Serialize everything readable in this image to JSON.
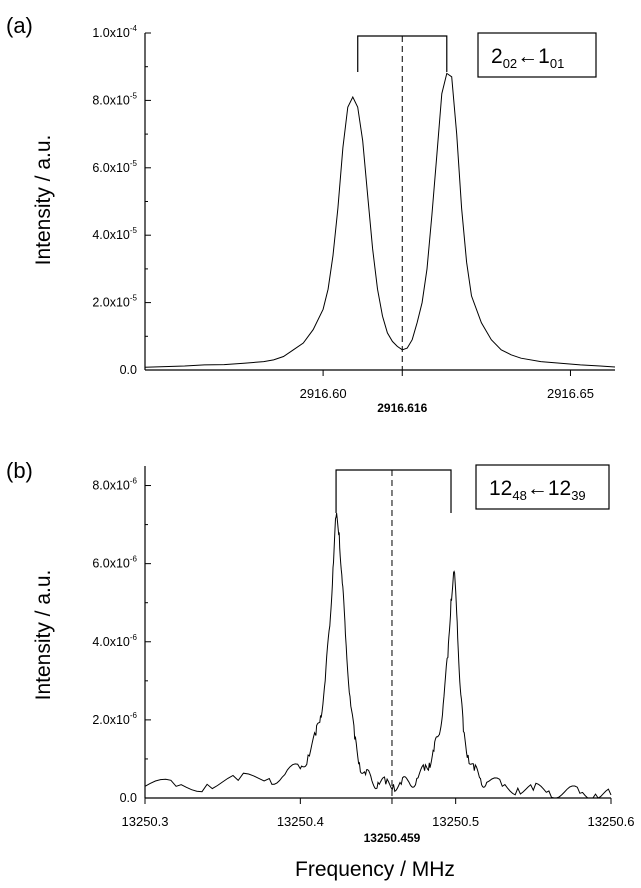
{
  "figure": {
    "xlabel": "Frequency / MHz"
  },
  "chart_data": [
    {
      "panel_label": "(a)",
      "type": "line",
      "ylabel": "Intensity / a.u.",
      "xlim": [
        2916.564,
        2916.659
      ],
      "ylim": [
        0,
        0.0001
      ],
      "x_ticks": [
        {
          "value": 2916.6,
          "label": "2916.60"
        },
        {
          "value": 2916.65,
          "label": "2916.65"
        }
      ],
      "y_ticks": [
        {
          "value": 0,
          "mant": "0.0",
          "exp": ""
        },
        {
          "value": 2e-05,
          "mant": "2.0x10",
          "exp": "-5"
        },
        {
          "value": 4e-05,
          "mant": "4.0x10",
          "exp": "-5"
        },
        {
          "value": 6e-05,
          "mant": "6.0x10",
          "exp": "-5"
        },
        {
          "value": 8e-05,
          "mant": "8.0x10",
          "exp": "-5"
        },
        {
          "value": 0.0001,
          "mant": "1.0x10",
          "exp": "-4"
        }
      ],
      "center": {
        "value": 2916.616,
        "label": "2916.616"
      },
      "doublet": [
        2916.607,
        2916.625
      ],
      "transition": {
        "upper": "2",
        "upper_sub": "02",
        "arrow": "←",
        "lower": "1",
        "lower_sub": "01"
      },
      "series": [
        {
          "x": [
            2916.564,
            2916.568,
            2916.572,
            2916.576,
            2916.58,
            2916.584,
            2916.588,
            2916.59,
            2916.592,
            2916.594,
            2916.596,
            2916.598,
            2916.6,
            2916.601,
            2916.602,
            2916.603,
            2916.604,
            2916.605,
            2916.606,
            2916.607,
            2916.608,
            2916.609,
            2916.61,
            2916.611,
            2916.612,
            2916.613,
            2916.614,
            2916.615,
            2916.616,
            2916.617,
            2916.618,
            2916.619,
            2916.62,
            2916.621,
            2916.622,
            2916.623,
            2916.624,
            2916.625,
            2916.626,
            2916.627,
            2916.628,
            2916.629,
            2916.63,
            2916.632,
            2916.634,
            2916.636,
            2916.638,
            2916.64,
            2916.644,
            2916.648,
            2916.652,
            2916.656,
            2916.659
          ],
          "y": [
            8e-07,
            1e-06,
            1.2e-06,
            1.5e-06,
            1.6e-06,
            2e-06,
            2.5e-06,
            3e-06,
            4e-06,
            6e-06,
            8e-06,
            1.2e-05,
            1.8e-05,
            2.4e-05,
            3.4e-05,
            4.8e-05,
            6.6e-05,
            7.8e-05,
            8.1e-05,
            7.8e-05,
            6.8e-05,
            5.2e-05,
            3.6e-05,
            2.4e-05,
            1.6e-05,
            1.1e-05,
            8.5e-06,
            7e-06,
            6e-06,
            6.5e-06,
            9e-06,
            1.4e-05,
            2e-05,
            3e-05,
            4.6e-05,
            6.4e-05,
            8.2e-05,
            8.8e-05,
            8.7e-05,
            7e-05,
            4.8e-05,
            3.2e-05,
            2.2e-05,
            1.4e-05,
            9e-06,
            6e-06,
            4.5e-06,
            3.5e-06,
            2.5e-06,
            2e-06,
            1.5e-06,
            1.2e-06,
            9e-07
          ]
        }
      ]
    },
    {
      "panel_label": "(b)",
      "type": "line",
      "ylabel": "Intensity / a.u.",
      "xlim": [
        13250.3,
        13250.6
      ],
      "ylim": [
        0,
        8.5e-06
      ],
      "x_ticks": [
        {
          "value": 13250.3,
          "label": "13250.3"
        },
        {
          "value": 13250.4,
          "label": "13250.4"
        },
        {
          "value": 13250.5,
          "label": "13250.5"
        },
        {
          "value": 13250.6,
          "label": "13250.6"
        }
      ],
      "y_ticks": [
        {
          "value": 0,
          "mant": "0.0",
          "exp": ""
        },
        {
          "value": 2e-06,
          "mant": "2.0x10",
          "exp": "-6"
        },
        {
          "value": 4e-06,
          "mant": "4.0x10",
          "exp": "-6"
        },
        {
          "value": 6e-06,
          "mant": "6.0x10",
          "exp": "-6"
        },
        {
          "value": 8e-06,
          "mant": "8.0x10",
          "exp": "-6"
        }
      ],
      "center": {
        "value": 13250.459,
        "label": "13250.459"
      },
      "doublet": [
        13250.423,
        13250.497
      ],
      "transition": {
        "upper": "12",
        "upper_sub": "48",
        "arrow": "←",
        "lower": "12",
        "lower_sub": "39"
      },
      "series": [
        {
          "x": [
            13250.3,
            13250.32,
            13250.34,
            13250.36,
            13250.38,
            13250.39,
            13250.4,
            13250.405,
            13250.41,
            13250.413,
            13250.416,
            13250.419,
            13250.421,
            13250.423,
            13250.425,
            13250.427,
            13250.429,
            13250.432,
            13250.435,
            13250.438,
            13250.442,
            13250.446,
            13250.45,
            13250.455,
            13250.46,
            13250.465,
            13250.47,
            13250.475,
            13250.48,
            13250.483,
            13250.486,
            13250.489,
            13250.492,
            13250.495,
            13250.497,
            13250.499,
            13250.501,
            13250.503,
            13250.505,
            13250.508,
            13250.512,
            13250.516,
            13250.52,
            13250.53,
            13250.54,
            13250.55,
            13250.56,
            13250.57,
            13250.58,
            13250.59,
            13250.6
          ],
          "y": [
            3e-07,
            3e-07,
            3.5e-07,
            4.5e-07,
            5e-07,
            6e-07,
            7.5e-07,
            1.1e-06,
            1.6e-06,
            2.1e-06,
            3e-06,
            4.4e-06,
            5.9e-06,
            7.2e-06,
            6.8e-06,
            5.5e-06,
            4.2e-06,
            2.6e-06,
            1.5e-06,
            9e-07,
            6e-07,
            4.5e-07,
            4e-07,
            3.5e-07,
            3.5e-07,
            3.5e-07,
            4e-07,
            5e-07,
            7e-07,
            9e-07,
            1.2e-06,
            1.6e-06,
            2.4e-06,
            3.6e-06,
            5.1e-06,
            5.8e-06,
            4.5e-06,
            2.8e-06,
            1.7e-06,
            1.1e-06,
            7e-07,
            5e-07,
            4e-07,
            3e-07,
            2.5e-07,
            2e-07,
            1.8e-07,
            1.5e-07,
            1.2e-07,
            1e-07,
            8e-08
          ]
        }
      ]
    }
  ]
}
